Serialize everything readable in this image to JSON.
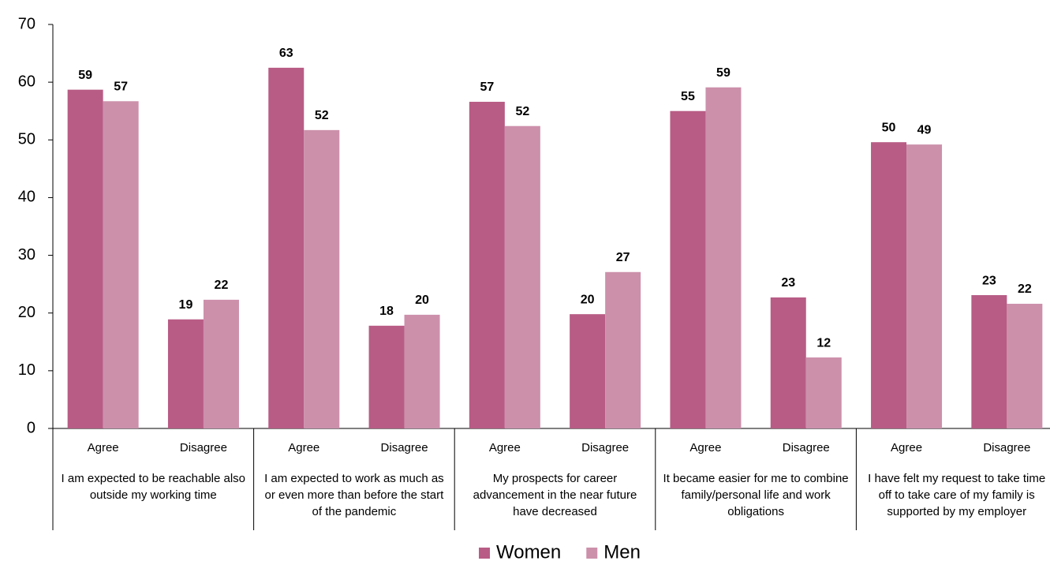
{
  "chart_data": {
    "type": "bar",
    "categories": [
      "Agree",
      "Disagree",
      "Agree",
      "Disagree",
      "Agree",
      "Disagree",
      "Agree",
      "Disagree",
      "Agree",
      "Disagree"
    ],
    "groups": [
      "I am expected to be reachable also outside my working time",
      "I am expected to work as much as or even more than before the start of the pandemic",
      "My prospects for career advancement in the near future have decreased",
      "It became easier for me to combine family/personal life and work obligations",
      "I have felt my request to take time off to take care of my family is supported by my employer"
    ],
    "series": [
      {
        "name": "Women",
        "color": "#b85c85",
        "values": [
          58.7,
          18.9,
          62.5,
          17.8,
          56.6,
          19.8,
          55.0,
          22.7,
          49.6,
          23.1
        ],
        "value_labels": [
          "59",
          "19",
          "63",
          "18",
          "57",
          "20",
          "55",
          "23",
          "50",
          "23"
        ]
      },
      {
        "name": "Men",
        "color": "#cc90ab",
        "values": [
          56.7,
          22.3,
          51.7,
          19.7,
          52.4,
          27.1,
          59.1,
          12.3,
          49.2,
          21.6
        ],
        "value_labels": [
          "57",
          "22",
          "52",
          "20",
          "52",
          "27",
          "59",
          "12",
          "49",
          "22"
        ]
      }
    ],
    "ylim": [
      0,
      70
    ],
    "yticks": [
      0,
      10,
      20,
      30,
      40,
      50,
      60,
      70
    ],
    "grid": false,
    "legend": "bottom"
  }
}
